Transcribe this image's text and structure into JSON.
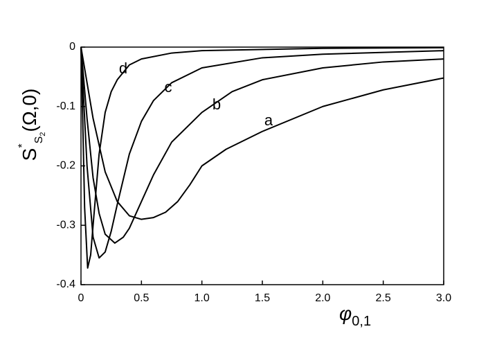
{
  "chart_data": {
    "type": "line",
    "xlabel": {
      "main": "φ",
      "sub": "0,1"
    },
    "ylabel": {
      "main": "S",
      "sup": "*",
      "sub": "S",
      "subsub": "2",
      "rest": "(Ω,0)"
    },
    "xlim": [
      0,
      3.0
    ],
    "ylim": [
      -0.4,
      0
    ],
    "xticks": [
      0,
      0.5,
      {
        "value": 1,
        "label": "1.0"
      },
      1.5,
      {
        "value": 2,
        "label": "2.0"
      },
      2.5,
      {
        "value": 3,
        "label": "3.0"
      }
    ],
    "yticks": [
      0,
      -0.1,
      -0.2,
      -0.3,
      -0.4
    ],
    "grid": false,
    "series": [
      {
        "name": "a",
        "color": "#000000",
        "x": [
          0,
          0.05,
          0.1,
          0.2,
          0.3,
          0.4,
          0.5,
          0.6,
          0.7,
          0.8,
          0.9,
          1.0,
          1.2,
          1.5,
          2.0,
          2.5,
          3.0
        ],
        "values": [
          0,
          -0.06,
          -0.12,
          -0.21,
          -0.26,
          -0.284,
          -0.29,
          -0.287,
          -0.278,
          -0.26,
          -0.232,
          -0.2,
          -0.172,
          -0.142,
          -0.1,
          -0.072,
          -0.052
        ]
      },
      {
        "name": "b",
        "color": "#000000",
        "x": [
          0,
          0.05,
          0.1,
          0.15,
          0.2,
          0.28,
          0.35,
          0.4,
          0.5,
          0.6,
          0.75,
          1.0,
          1.25,
          1.5,
          2.0,
          2.5,
          3.0
        ],
        "values": [
          0,
          -0.12,
          -0.22,
          -0.28,
          -0.315,
          -0.33,
          -0.32,
          -0.305,
          -0.26,
          -0.215,
          -0.16,
          -0.11,
          -0.075,
          -0.055,
          -0.035,
          -0.025,
          -0.02
        ]
      },
      {
        "name": "c",
        "color": "#000000",
        "x": [
          0,
          0.02,
          0.05,
          0.1,
          0.15,
          0.2,
          0.25,
          0.3,
          0.4,
          0.5,
          0.6,
          0.75,
          1.0,
          1.5,
          2.0,
          3.0
        ],
        "values": [
          0,
          -0.08,
          -0.2,
          -0.32,
          -0.355,
          -0.345,
          -0.31,
          -0.265,
          -0.18,
          -0.125,
          -0.09,
          -0.06,
          -0.035,
          -0.018,
          -0.012,
          -0.006
        ]
      },
      {
        "name": "d",
        "color": "#000000",
        "x": [
          0,
          0.01,
          0.03,
          0.055,
          0.08,
          0.1,
          0.15,
          0.2,
          0.25,
          0.3,
          0.4,
          0.5,
          0.75,
          1.0,
          2.0,
          3.0
        ],
        "values": [
          0,
          -0.08,
          -0.27,
          -0.372,
          -0.35,
          -0.3,
          -0.18,
          -0.11,
          -0.075,
          -0.055,
          -0.03,
          -0.02,
          -0.01,
          -0.006,
          -0.002,
          -0.001
        ]
      }
    ]
  }
}
